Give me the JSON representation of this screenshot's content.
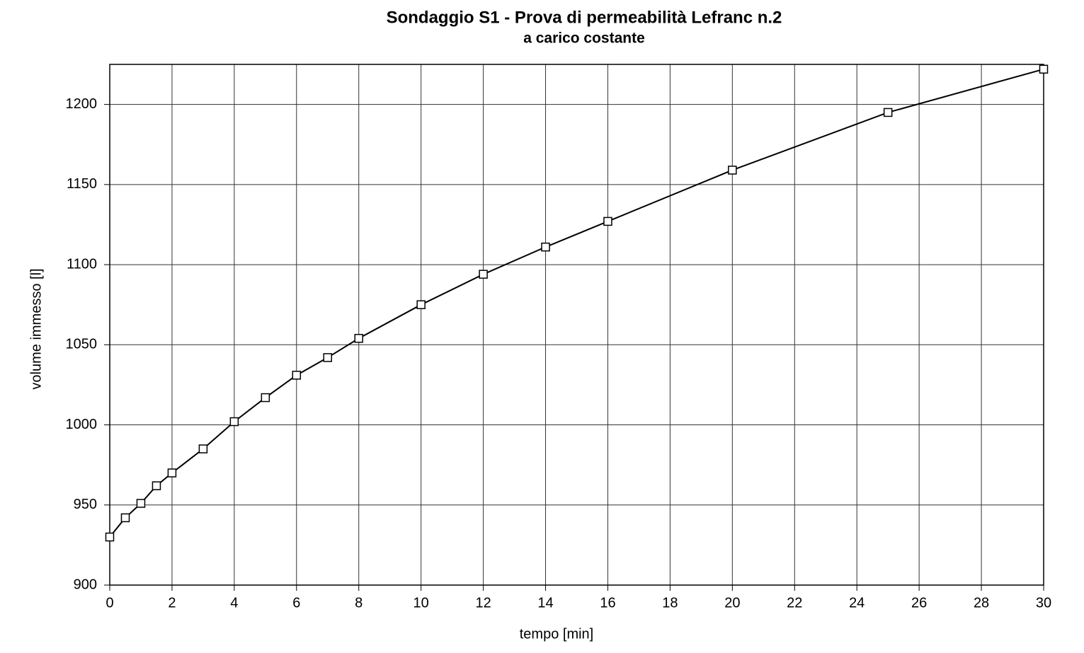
{
  "chart_data": {
    "type": "line",
    "title": "Sondaggio S1 - Prova di permeabilità Lefranc n.2",
    "subtitle": "a carico costante",
    "x_label": "tempo [min]",
    "y_label": "volume immesso [l]",
    "x": [
      0,
      0.5,
      1,
      1.5,
      2,
      3,
      4,
      5,
      6,
      7,
      8,
      10,
      12,
      14,
      16,
      20,
      25,
      30
    ],
    "series": [
      {
        "name": "volume immesso",
        "color": "#000000",
        "values": [
          930,
          942,
          951,
          962,
          970,
          985,
          1002,
          1017,
          1031,
          1042,
          1054,
          1075,
          1094,
          1111,
          1127,
          1159,
          1195,
          1222
        ]
      }
    ],
    "xlim": [
      0,
      30
    ],
    "ylim": [
      900,
      1225
    ],
    "xticks": [
      0,
      2,
      4,
      6,
      8,
      10,
      12,
      14,
      16,
      18,
      20,
      22,
      24,
      26,
      28,
      30
    ],
    "yticks": [
      900,
      950,
      1000,
      1050,
      1100,
      1150,
      1200
    ],
    "grid": true
  }
}
